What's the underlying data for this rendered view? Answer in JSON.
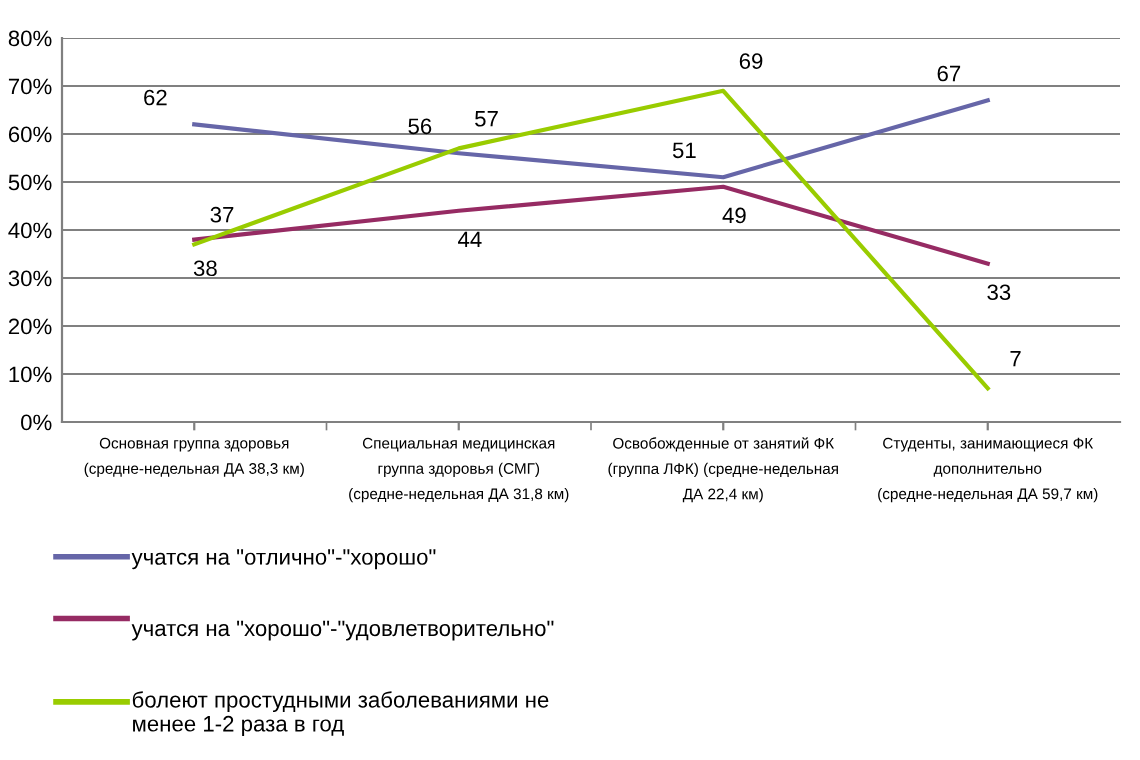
{
  "chart_data": {
    "type": "line",
    "categories": [
      "Основная группа здоровья (средне-недельная ДА 38,3 км)",
      "Специальная медицинская группа здоровья (СМГ) (средне-недельная ДА 31,8 км)",
      "Освобожденные от занятий ФК (группа ЛФК) (средне-недельная ДА 22,4 км)",
      "Студенты, занимающиеся ФК дополнительно (средне-недельная ДА 59,7 км)"
    ],
    "series": [
      {
        "name": "учатся на \"отлично\"-\"хорошо\"",
        "color": "#6666a8",
        "values": [
          62,
          56,
          51,
          67
        ]
      },
      {
        "name": "учатся на \"хорошо\"-\"удовлетворительно\"",
        "color": "#962b63",
        "values": [
          38,
          44,
          49,
          33
        ]
      },
      {
        "name": "болеют простудными заболеваниями не менее 1-2 раза в год",
        "color": "#99cc00",
        "values": [
          37,
          57,
          69,
          7
        ]
      }
    ],
    "ylim": [
      0,
      80
    ],
    "yticks": [
      {
        "value": 0,
        "label": "0%"
      },
      {
        "value": 10,
        "label": "10%"
      },
      {
        "value": 20,
        "label": "20%"
      },
      {
        "value": 30,
        "label": "30%"
      },
      {
        "value": 40,
        "label": "40%"
      },
      {
        "value": 50,
        "label": "50%"
      },
      {
        "value": 60,
        "label": "60%"
      },
      {
        "value": 70,
        "label": "70%"
      },
      {
        "value": 80,
        "label": "80%"
      }
    ],
    "grid": "y",
    "legend": "bottom left",
    "data_labels": true,
    "marker": "none",
    "line_style": "solid"
  }
}
